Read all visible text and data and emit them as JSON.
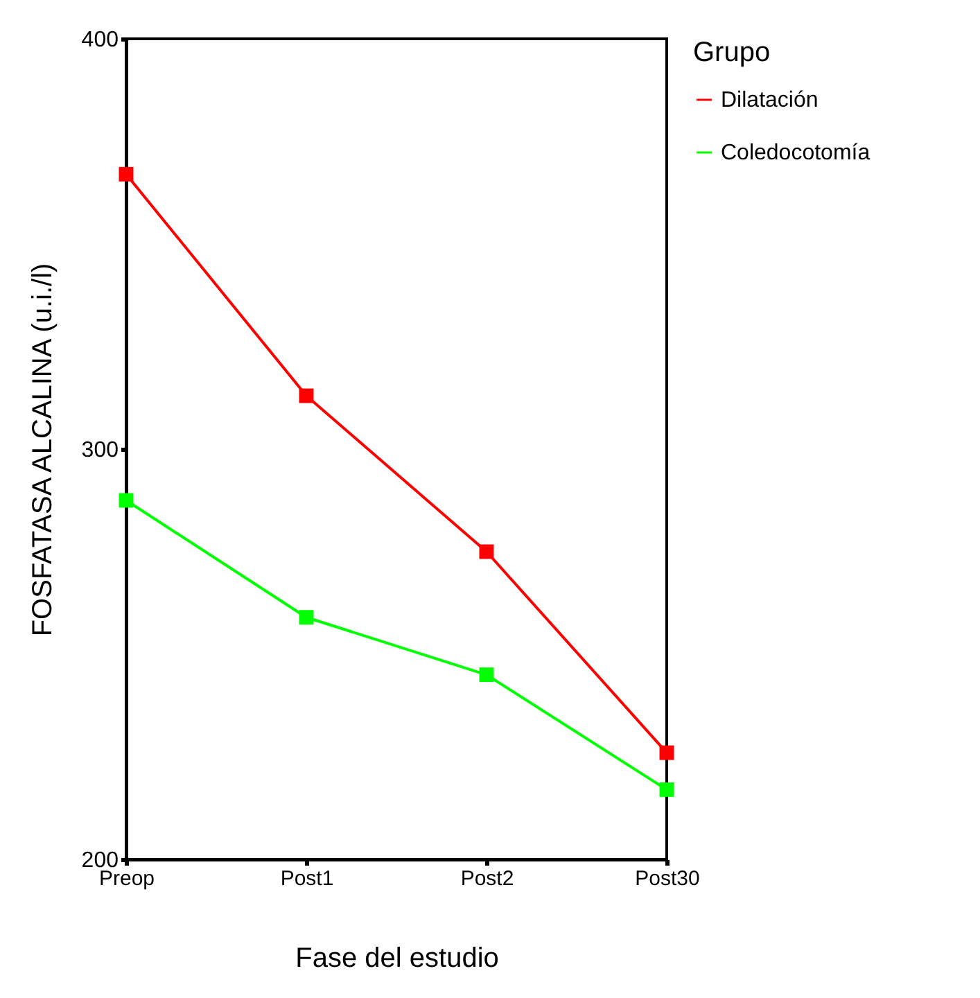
{
  "chart_data": {
    "type": "line",
    "xlabel": "Fase del estudio",
    "ylabel": "FOSFATASA ALCALINA (u.i./l)",
    "legend_title": "Grupo",
    "categories": [
      "Preop",
      "Post1",
      "Post2",
      "Post30"
    ],
    "series": [
      {
        "name": "Dilatación",
        "color": "#ff0000",
        "values": [
          367,
          313,
          275,
          226
        ]
      },
      {
        "name": "Coledocotomía",
        "color": "#00ff00",
        "values": [
          287.5,
          259,
          245,
          217
        ]
      }
    ],
    "ylim": [
      200,
      400
    ],
    "yticks": [
      200,
      300,
      400
    ],
    "grid": false,
    "legend": "right",
    "marker": "square",
    "line_style": "solid"
  }
}
